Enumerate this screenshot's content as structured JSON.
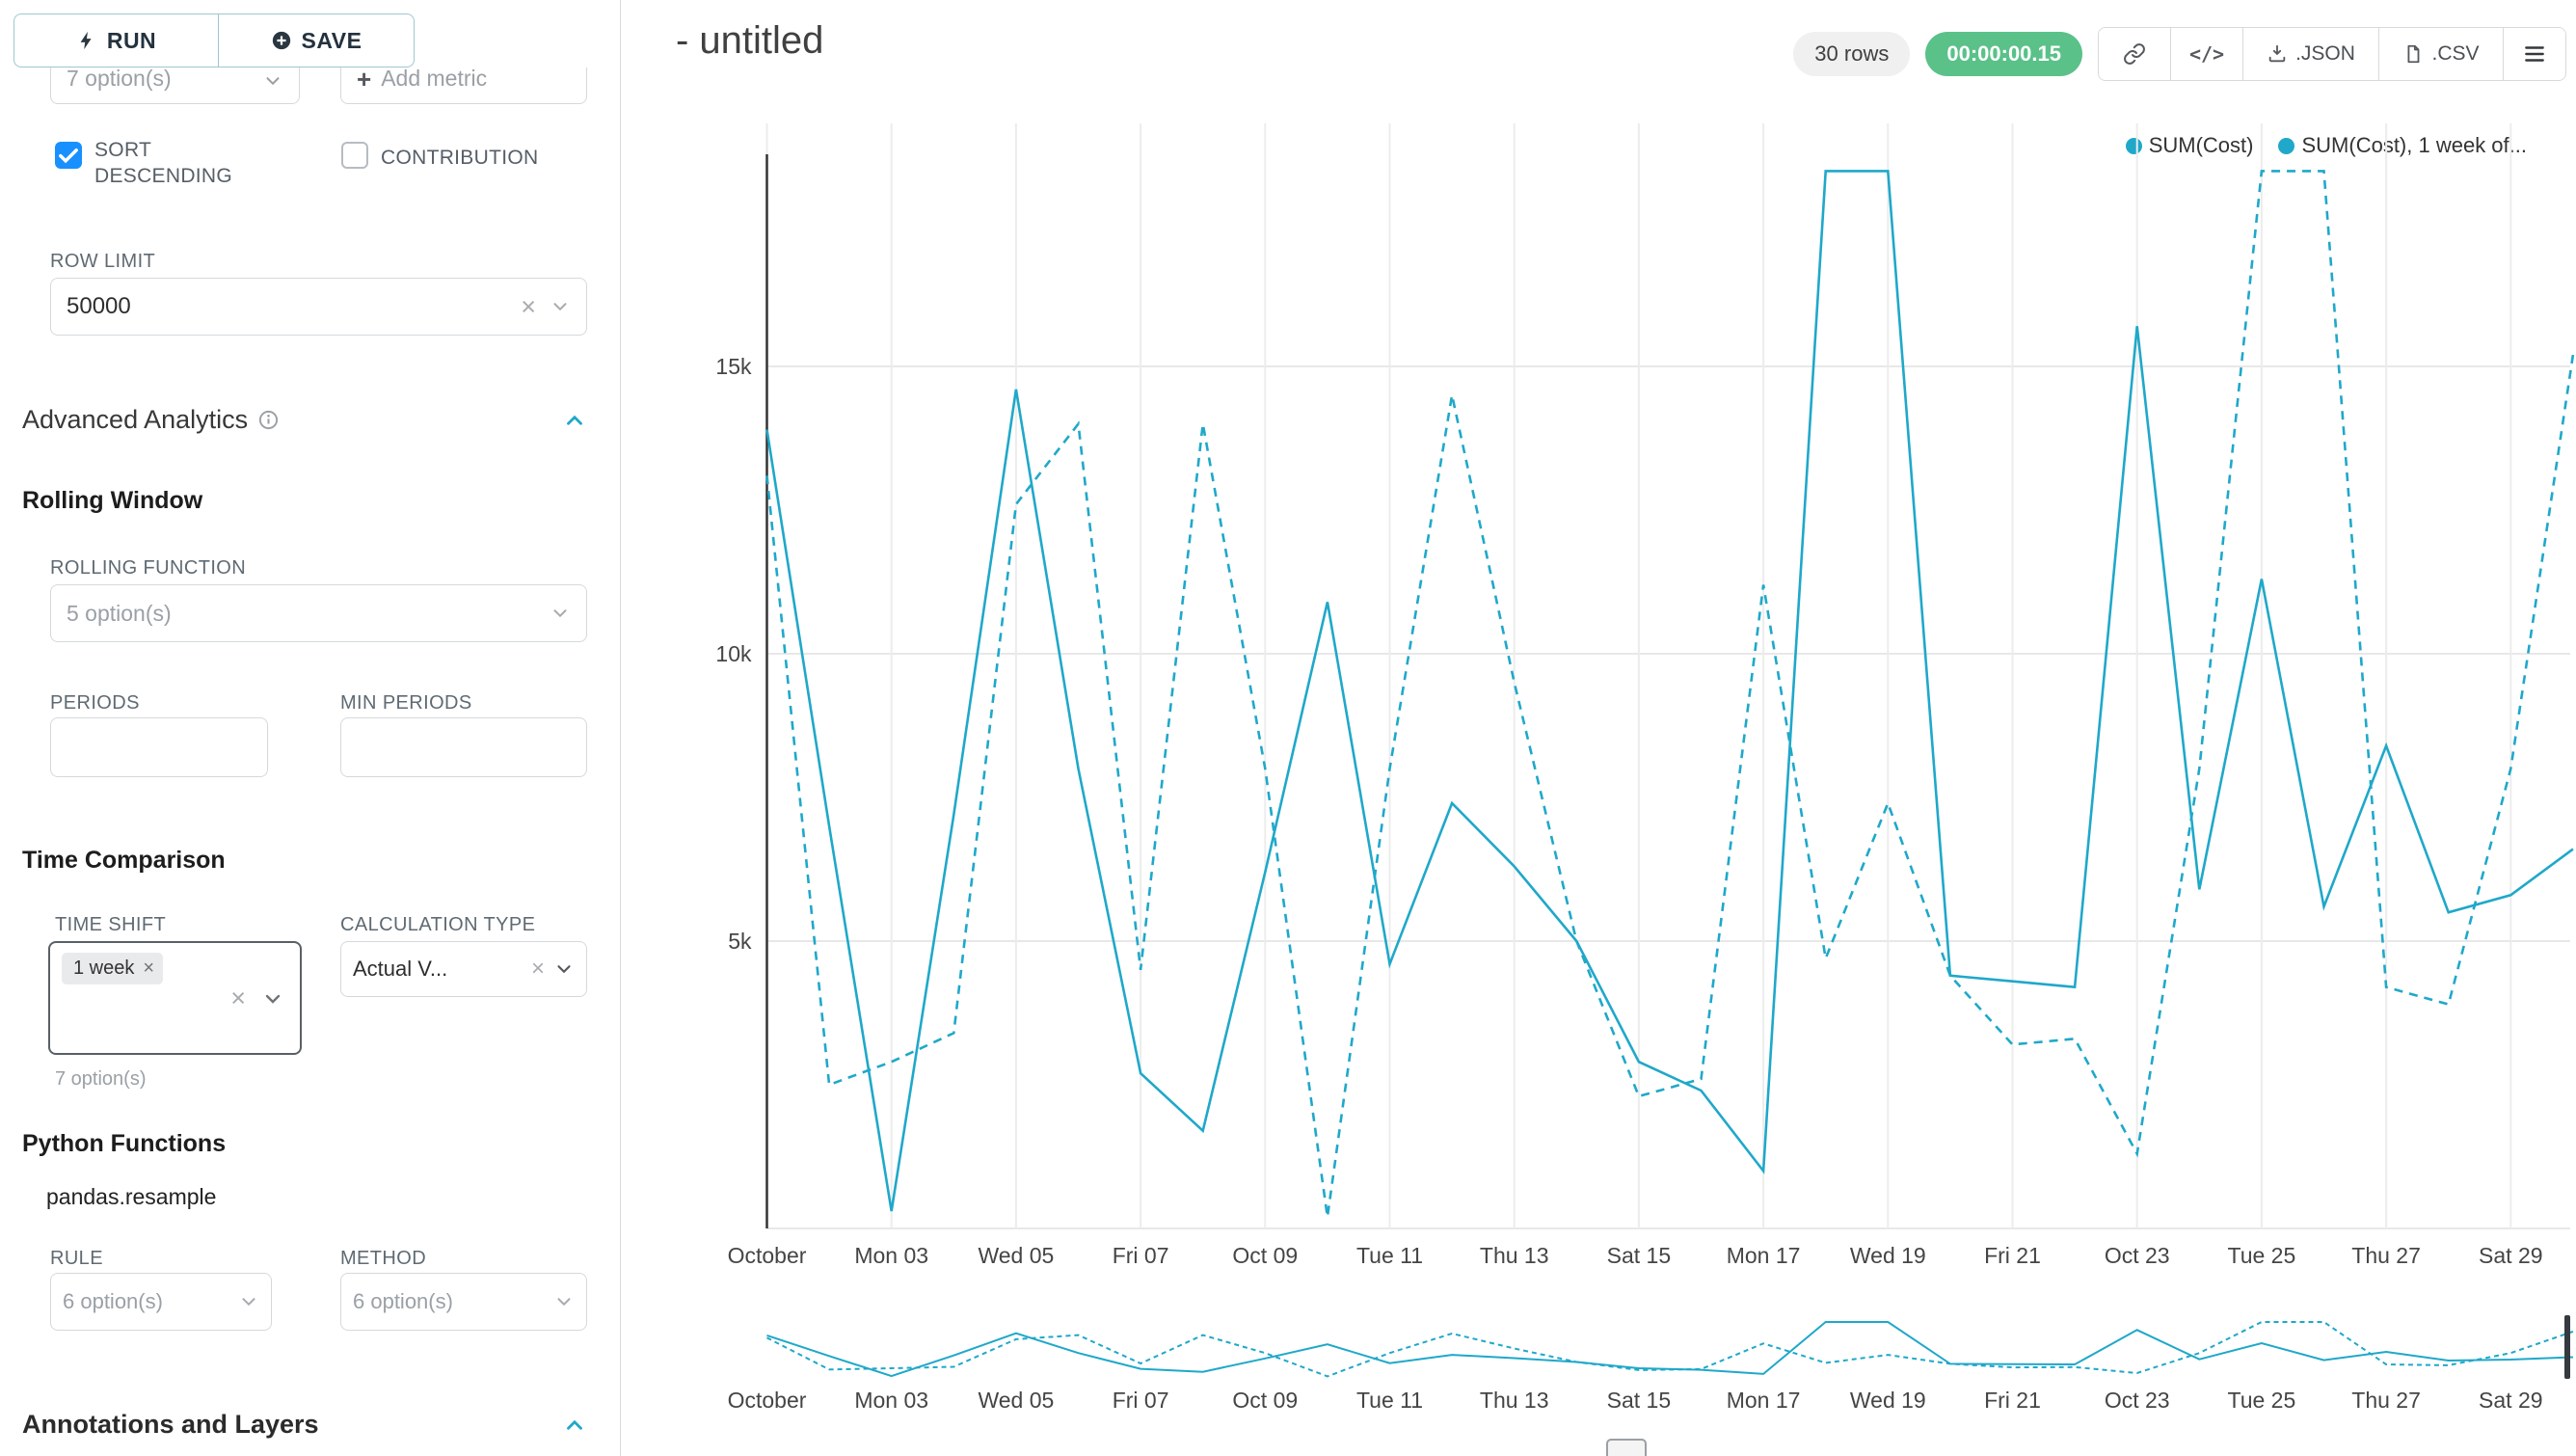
{
  "colors": {
    "accent": "#1FA8C9",
    "success": "#5AC189",
    "checkbox_checked": "#1890FF"
  },
  "icons": {
    "clear_x": "×",
    "tag_remove_x": "×",
    "plus": "+",
    "code": "</>"
  },
  "toolbar": {
    "run": "RUN",
    "save": "SAVE"
  },
  "query": {
    "metric_placeholder": "7 option(s)",
    "add_metric": "Add metric",
    "sort_descending": "SORT DESCENDING",
    "contribution": "CONTRIBUTION",
    "row_limit_label": "ROW LIMIT",
    "row_limit_value": "50000"
  },
  "advanced": {
    "section_title": "Advanced Analytics",
    "rolling_window_title": "Rolling Window",
    "rolling_function_label": "ROLLING FUNCTION",
    "rolling_function_placeholder": "5 option(s)",
    "periods_label": "PERIODS",
    "min_periods_label": "MIN PERIODS",
    "time_comparison_title": "Time Comparison",
    "time_shift_label": "TIME SHIFT",
    "time_shift_tag": "1 week",
    "time_shift_hint": "7 option(s)",
    "calculation_type_label": "CALCULATION TYPE",
    "calculation_type_value": "Actual V...",
    "python_functions_title": "Python Functions",
    "python_function_name": "pandas.resample",
    "rule_label": "RULE",
    "rule_placeholder": "6 option(s)",
    "method_label": "METHOD",
    "method_placeholder": "6 option(s)"
  },
  "annotations": {
    "section_title": "Annotations and Layers"
  },
  "chart_header": {
    "title": "- untitled",
    "rows_badge": "30 rows",
    "timer": "00:00:00.15",
    "json_export": ".JSON",
    "csv_export": ".CSV"
  },
  "chart_data": {
    "type": "line",
    "title": "- untitled",
    "legend": [
      "SUM(Cost)",
      "SUM(Cost), 1 week of..."
    ],
    "legend_position": "top-right",
    "grid": true,
    "x_ticks": [
      {
        "index": 0,
        "label": "October"
      },
      {
        "index": 2,
        "label": "Mon 03"
      },
      {
        "index": 4,
        "label": "Wed 05"
      },
      {
        "index": 6,
        "label": "Fri 07"
      },
      {
        "index": 8,
        "label": "Oct 09"
      },
      {
        "index": 10,
        "label": "Tue 11"
      },
      {
        "index": 12,
        "label": "Thu 13"
      },
      {
        "index": 14,
        "label": "Sat 15"
      },
      {
        "index": 16,
        "label": "Mon 17"
      },
      {
        "index": 18,
        "label": "Wed 19"
      },
      {
        "index": 20,
        "label": "Fri 21"
      },
      {
        "index": 22,
        "label": "Oct 23"
      },
      {
        "index": 24,
        "label": "Tue 25"
      },
      {
        "index": 26,
        "label": "Thu 27"
      },
      {
        "index": 28,
        "label": "Sat 29"
      }
    ],
    "y_ticks": [
      {
        "label": "5k",
        "value": 5
      },
      {
        "label": "10k",
        "value": 10
      },
      {
        "label": "15k",
        "value": 15
      }
    ],
    "y_unit": "k",
    "ylim": [
      0,
      19.3
    ],
    "has_mini_preview": true,
    "series": [
      {
        "name": "SUM(Cost)",
        "line_style": "solid",
        "values_k": [
          13.9,
          7.0,
          0.3,
          7.2,
          14.6,
          8.0,
          2.7,
          1.7,
          6.2,
          10.9,
          4.6,
          7.4,
          6.3,
          5.0,
          2.9,
          2.4,
          1.0,
          18.4,
          18.4,
          4.4,
          4.3,
          4.2,
          15.7,
          5.9,
          11.3,
          5.6,
          8.4,
          5.5,
          5.8,
          6.6
        ]
      },
      {
        "name": "SUM(Cost), 1 week offset",
        "line_style": "dashed",
        "values_k": [
          13.1,
          2.5,
          2.9,
          3.4,
          12.6,
          14.0,
          4.5,
          14.0,
          8.0,
          0.2,
          8.0,
          14.5,
          9.5,
          5.0,
          2.3,
          2.6,
          11.2,
          4.7,
          7.4,
          4.4,
          3.2,
          3.3,
          1.3,
          8.0,
          18.4,
          18.4,
          4.2,
          3.9,
          8.0,
          15.2
        ]
      }
    ]
  }
}
